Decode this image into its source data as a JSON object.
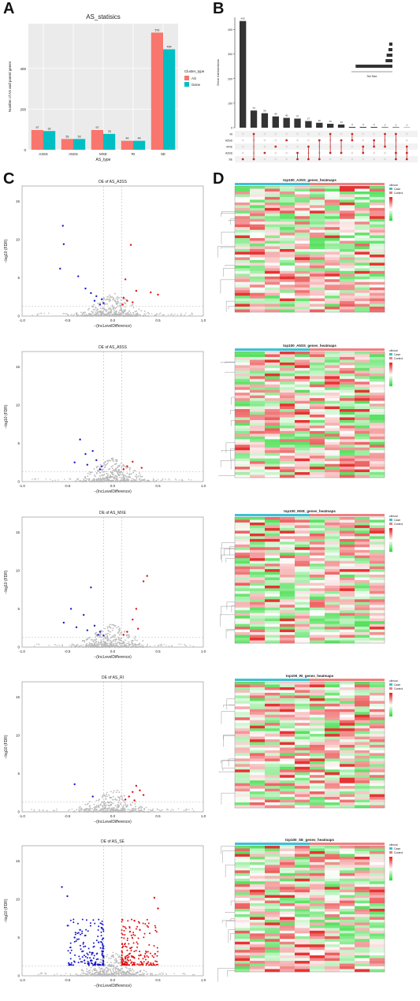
{
  "panels": {
    "A": "A",
    "B": "B",
    "C": "C",
    "D": "D"
  },
  "chart_data": [
    {
      "type": "bar",
      "title": "AS_statisics",
      "xlabel": "AS_type",
      "ylabel": "Number of AS and parent genes",
      "categories": [
        "A3SS",
        "A5SS",
        "MXE",
        "RI",
        "SE"
      ],
      "series": [
        {
          "name": "AS",
          "color": "#f8766d",
          "values": [
            97,
            53,
            97,
            44,
            576
          ]
        },
        {
          "name": "Gene",
          "color": "#00bfc4",
          "values": [
            92,
            53,
            78,
            44,
            494
          ]
        }
      ],
      "yticks": [
        0,
        200,
        400
      ],
      "ylim": [
        0,
        620
      ],
      "legend_title": "Cluster_type",
      "grid": true,
      "legend_position": "right"
    },
    {
      "type": "bar",
      "ylabel": "Gene Intersections",
      "values": [
        435,
        70,
        59,
        46,
        40,
        37,
        27,
        20,
        16,
        13,
        3,
        3,
        3,
        2,
        2,
        1
      ],
      "yticks": [
        0,
        100,
        200,
        300,
        400
      ],
      "sets": [
        "RI",
        "A5SS",
        "MXE",
        "A3SS",
        "SE"
      ],
      "set_size_label": "Set Size",
      "set_sizes": [
        44,
        53,
        78,
        92,
        494
      ]
    },
    {
      "type": "scatter",
      "title": "DE of AS_A3SS",
      "xlabel": "−(IncLevelDifference)",
      "ylabel": "−log10 (FDR)",
      "xlim": [
        -1.0,
        1.0
      ],
      "ylim": [
        0,
        17
      ],
      "xticks": [
        -1.0,
        -0.5,
        0.0,
        0.5,
        1.0
      ],
      "yticks": [
        0,
        5,
        10,
        15
      ],
      "down": [
        [
          -0.55,
          11.8
        ],
        [
          -0.54,
          9.4
        ],
        [
          -0.58,
          6.2
        ],
        [
          -0.38,
          5.2
        ],
        [
          -0.3,
          3.6
        ],
        [
          -0.24,
          3.0
        ],
        [
          -0.18,
          2.6
        ],
        [
          -0.12,
          2.2
        ],
        [
          -0.1,
          1.7
        ],
        [
          -0.2,
          2.0
        ],
        [
          -0.14,
          1.5
        ]
      ],
      "up": [
        [
          0.2,
          9.3
        ],
        [
          0.14,
          4.8
        ],
        [
          0.42,
          3.1
        ],
        [
          0.5,
          2.8
        ],
        [
          0.26,
          3.3
        ],
        [
          0.12,
          2.4
        ],
        [
          0.16,
          2.0
        ],
        [
          0.22,
          1.8
        ],
        [
          0.11,
          1.5
        ]
      ]
    },
    {
      "type": "scatter",
      "title": "DE of AS_A5SS",
      "xlabel": "−(IncLevelDifference)",
      "ylabel": "−log10 (FDR)",
      "xlim": [
        -1.0,
        1.0
      ],
      "ylim": [
        0,
        17
      ],
      "xticks": [
        -1.0,
        -0.5,
        0.0,
        0.5,
        1.0
      ],
      "yticks": [
        0,
        5,
        10,
        15
      ],
      "down": [
        [
          -0.36,
          5.5
        ],
        [
          -0.3,
          3.6
        ],
        [
          -0.22,
          4.0
        ],
        [
          -0.42,
          2.5
        ],
        [
          -0.18,
          2.8
        ],
        [
          -0.12,
          2.0
        ],
        [
          -0.28,
          2.2
        ],
        [
          -0.14,
          1.6
        ]
      ],
      "up": [
        [
          0.22,
          2.6
        ],
        [
          0.16,
          2.0
        ],
        [
          0.12,
          1.6
        ],
        [
          0.32,
          1.8
        ]
      ]
    },
    {
      "type": "scatter",
      "title": "DE of AS_MXE",
      "xlabel": "−(IncLevelDifference)",
      "ylabel": "−log10 (FDR)",
      "xlim": [
        -1.0,
        1.0
      ],
      "ylim": [
        0,
        17
      ],
      "xticks": [
        -1.0,
        -0.5,
        0.0,
        0.5,
        1.0
      ],
      "yticks": [
        0,
        5,
        10,
        15
      ],
      "down": [
        [
          -0.24,
          7.8
        ],
        [
          -0.46,
          5.0
        ],
        [
          -0.32,
          4.2
        ],
        [
          -0.54,
          3.2
        ],
        [
          -0.4,
          2.6
        ],
        [
          -0.2,
          2.8
        ],
        [
          -0.14,
          2.0
        ],
        [
          -0.28,
          2.2
        ],
        [
          -0.16,
          1.6
        ],
        [
          -0.1,
          1.5
        ]
      ],
      "up": [
        [
          0.38,
          9.3
        ],
        [
          0.34,
          8.6
        ],
        [
          0.26,
          5.0
        ],
        [
          0.22,
          3.6
        ],
        [
          0.28,
          2.4
        ],
        [
          0.16,
          2.0
        ],
        [
          0.12,
          1.6
        ]
      ]
    },
    {
      "type": "scatter",
      "title": "DE of AS_RI",
      "xlabel": "−(IncLevelDifference)",
      "ylabel": "−log10 (FDR)",
      "xlim": [
        -1.0,
        1.0
      ],
      "ylim": [
        0,
        17
      ],
      "xticks": [
        -1.0,
        -0.5,
        0.0,
        0.5,
        1.0
      ],
      "yticks": [
        0,
        5,
        10,
        15
      ],
      "down": [
        [
          -0.42,
          3.6
        ],
        [
          -0.22,
          2.0
        ]
      ],
      "up": [
        [
          0.26,
          3.4
        ],
        [
          0.3,
          2.8
        ],
        [
          0.22,
          2.6
        ],
        [
          0.18,
          2.0
        ],
        [
          0.14,
          1.6
        ],
        [
          0.34,
          2.2
        ],
        [
          0.24,
          1.5
        ]
      ]
    },
    {
      "type": "scatter",
      "title": "DE of AS_SE",
      "xlabel": "−(IncLevelDifference)",
      "ylabel": "−log10 (FDR)",
      "xlim": [
        -1.0,
        1.0
      ],
      "ylim": [
        0,
        17
      ],
      "xticks": [
        -1.0,
        -0.5,
        0.0,
        0.5,
        1.0
      ],
      "yticks": [
        0,
        5,
        10,
        15
      ],
      "down_dense": 180,
      "up_dense": 200,
      "down": [
        [
          -0.56,
          11.6
        ],
        [
          -0.5,
          10.4
        ],
        [
          -0.36,
          6.0
        ],
        [
          -0.42,
          5.0
        ]
      ],
      "up": [
        [
          0.46,
          10.2
        ],
        [
          0.5,
          8.8
        ],
        [
          0.24,
          7.2
        ],
        [
          0.3,
          6.0
        ]
      ]
    }
  ],
  "heatmaps": [
    {
      "title": "top100_A3SS_genes_heatmaps"
    },
    {
      "title": "top100_A5SS_genes_heatmaps"
    },
    {
      "title": "top100_MXE_genes_heatmaps"
    },
    {
      "title": "top100_RI_genes_heatmaps"
    },
    {
      "title": "top100_SE_genes_heatmaps"
    }
  ],
  "heatmap_legend": {
    "group_title": "clinical",
    "group_labels": [
      "Case",
      "Control"
    ],
    "case_color": "#3ec1d3",
    "control_color": "#f08080"
  }
}
